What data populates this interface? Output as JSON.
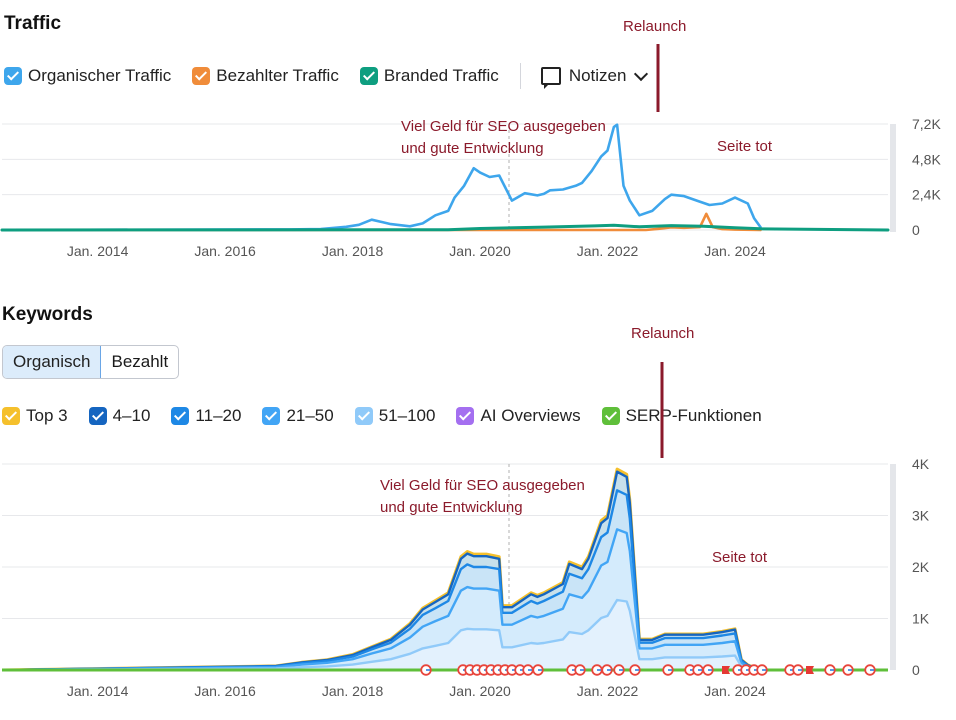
{
  "traffic": {
    "title": "Traffic",
    "legend": [
      {
        "label": "Organischer Traffic",
        "color": "#3ea6ec"
      },
      {
        "label": "Bezahlter Traffic",
        "color": "#f08c3a"
      },
      {
        "label": "Branded Traffic",
        "color": "#0e9e80"
      }
    ],
    "notes_label": "Notizen",
    "annotations": {
      "relaunch": "Relaunch",
      "seo_line1": "Viel Geld für SEO ausgegeben",
      "seo_line2": "und gute Entwicklung",
      "dead": "Seite tot"
    }
  },
  "keywords": {
    "title": "Keywords",
    "tabs": [
      "Organisch",
      "Bezahlt"
    ],
    "legend": [
      {
        "label": "Top 3",
        "color": "#f5c02c"
      },
      {
        "label": "4–10",
        "color": "#1565c0"
      },
      {
        "label": "11–20",
        "color": "#1e88e5"
      },
      {
        "label": "21–50",
        "color": "#42a5f5"
      },
      {
        "label": "51–100",
        "color": "#90caf9"
      },
      {
        "label": "AI Overviews",
        "color": "#a46ff0"
      },
      {
        "label": "SERP-Funktionen",
        "color": "#5fbf3a"
      }
    ],
    "annotations": {
      "relaunch": "Relaunch",
      "seo_line1": "Viel Geld für SEO ausgegeben",
      "seo_line2": "und gute Entwicklung",
      "dead": "Seite tot"
    }
  },
  "chart_data": [
    {
      "type": "line",
      "x_ticks": [
        "Jan. 2014",
        "Jan. 2016",
        "Jan. 2018",
        "Jan. 2020",
        "Jan. 2022",
        "Jan. 2024"
      ],
      "y_ticks": [
        "0",
        "2,4K",
        "4,8K",
        "7,2K"
      ],
      "ylim": [
        0,
        7200
      ],
      "x_range": [
        2012.5,
        2026.4
      ],
      "grid": true,
      "series": [
        {
          "name": "Organischer Traffic",
          "color": "#3ea6ec",
          "x": [
            2012.5,
            2017.0,
            2017.5,
            2017.9,
            2018.1,
            2018.3,
            2018.6,
            2018.9,
            2019.1,
            2019.3,
            2019.5,
            2019.6,
            2019.75,
            2019.9,
            2020.0,
            2020.15,
            2020.3,
            2020.5,
            2020.7,
            2020.9,
            2021.0,
            2021.1,
            2021.3,
            2021.5,
            2021.6,
            2021.75,
            2021.9,
            2022.0,
            2022.1,
            2022.15,
            2022.25,
            2022.35,
            2022.5,
            2022.7,
            2022.9,
            2023.0,
            2023.2,
            2023.4,
            2023.6,
            2023.8,
            2024.0,
            2024.2,
            2024.3,
            2024.4
          ],
          "y": [
            0,
            40,
            60,
            220,
            350,
            700,
            400,
            250,
            450,
            1000,
            1300,
            2200,
            3000,
            4200,
            3900,
            3600,
            3700,
            2000,
            2500,
            2350,
            2450,
            2700,
            2750,
            3000,
            3200,
            4000,
            5000,
            5400,
            7000,
            7150,
            3000,
            2000,
            1000,
            1300,
            2100,
            2400,
            2300,
            2000,
            1700,
            1800,
            2200,
            1800,
            800,
            200
          ]
        },
        {
          "name": "Bezahlter Traffic",
          "color": "#f08c3a",
          "x": [
            2012.5,
            2022.6,
            2022.8,
            2023.0,
            2023.2,
            2023.45,
            2023.55,
            2023.65,
            2023.8,
            2024.0,
            2024.4
          ],
          "y": [
            0,
            0,
            80,
            180,
            150,
            200,
            1100,
            200,
            60,
            30,
            0
          ]
        },
        {
          "name": "Branded Traffic",
          "color": "#0e9e80",
          "x": [
            2012.5,
            2019.5,
            2020.0,
            2021.0,
            2021.8,
            2022.1,
            2022.5,
            2023.0,
            2023.5,
            2024.0,
            2024.4,
            2026.4
          ],
          "y": [
            0,
            20,
            100,
            200,
            280,
            320,
            220,
            300,
            250,
            150,
            80,
            0
          ]
        }
      ]
    },
    {
      "type": "area",
      "x_ticks": [
        "Jan. 2014",
        "Jan. 2016",
        "Jan. 2018",
        "Jan. 2020",
        "Jan. 2022",
        "Jan. 2024"
      ],
      "y_ticks": [
        "0",
        "1K",
        "2K",
        "3K",
        "4K"
      ],
      "ylim": [
        0,
        4000
      ],
      "x_range": [
        2012.5,
        2026.4
      ],
      "grid": true,
      "x": [
        2012.5,
        2016.8,
        2017.2,
        2017.6,
        2018.0,
        2018.3,
        2018.6,
        2018.9,
        2019.1,
        2019.3,
        2019.5,
        2019.7,
        2019.8,
        2019.9,
        2020.1,
        2020.3,
        2020.35,
        2020.5,
        2020.8,
        2020.9,
        2021.0,
        2021.3,
        2021.4,
        2021.6,
        2021.7,
        2021.9,
        2022.0,
        2022.15,
        2022.3,
        2022.35,
        2022.5,
        2022.7,
        2022.9,
        2023.0,
        2023.2,
        2023.5,
        2023.8,
        2024.0,
        2024.1,
        2024.2,
        2024.3,
        2024.5,
        2026.4
      ],
      "series": [
        {
          "name": "Top 3",
          "color": "#f5c02c",
          "y": [
            0,
            80,
            150,
            200,
            300,
            450,
            600,
            900,
            1200,
            1350,
            1500,
            2200,
            2300,
            2250,
            2250,
            2200,
            1250,
            1250,
            1500,
            1450,
            1500,
            1700,
            2100,
            2000,
            2200,
            2900,
            3000,
            3900,
            3800,
            3300,
            600,
            600,
            700,
            700,
            700,
            700,
            750,
            800,
            200,
            100,
            50,
            0,
            0
          ]
        },
        {
          "name": "4–10",
          "color": "#1565c0",
          "y": [
            0,
            77,
            145,
            194,
            290,
            440,
            585,
            880,
            1175,
            1320,
            1470,
            2160,
            2260,
            2210,
            2210,
            2160,
            1220,
            1220,
            1470,
            1420,
            1470,
            1670,
            2060,
            1960,
            2160,
            2850,
            2950,
            3850,
            3750,
            3250,
            585,
            585,
            685,
            685,
            685,
            685,
            735,
            785,
            195,
            95,
            45,
            0,
            0
          ]
        },
        {
          "name": "11–20",
          "color": "#1e88e5",
          "y": [
            0,
            70,
            130,
            175,
            260,
            400,
            530,
            800,
            1070,
            1200,
            1340,
            1960,
            2050,
            2000,
            2000,
            1960,
            1110,
            1110,
            1340,
            1290,
            1340,
            1520,
            1870,
            1780,
            1960,
            2580,
            2670,
            3490,
            3400,
            2940,
            530,
            530,
            620,
            620,
            620,
            620,
            670,
            710,
            175,
            85,
            40,
            0,
            0
          ]
        },
        {
          "name": "21–50",
          "color": "#42a5f5",
          "y": [
            0,
            55,
            105,
            140,
            210,
            320,
            420,
            630,
            840,
            950,
            1050,
            1540,
            1610,
            1580,
            1580,
            1540,
            880,
            880,
            1050,
            1020,
            1050,
            1190,
            1470,
            1400,
            1540,
            2030,
            2100,
            2730,
            2660,
            2310,
            420,
            420,
            490,
            490,
            490,
            490,
            525,
            560,
            140,
            70,
            35,
            0,
            0
          ]
        },
        {
          "name": "51–100",
          "color": "#90caf9",
          "y": [
            0,
            30,
            55,
            70,
            105,
            160,
            210,
            315,
            420,
            470,
            525,
            770,
            800,
            790,
            790,
            770,
            440,
            440,
            525,
            510,
            525,
            595,
            735,
            700,
            770,
            1010,
            1050,
            1360,
            1330,
            1150,
            210,
            210,
            245,
            245,
            245,
            245,
            262,
            280,
            70,
            35,
            18,
            0,
            0
          ]
        }
      ]
    }
  ]
}
